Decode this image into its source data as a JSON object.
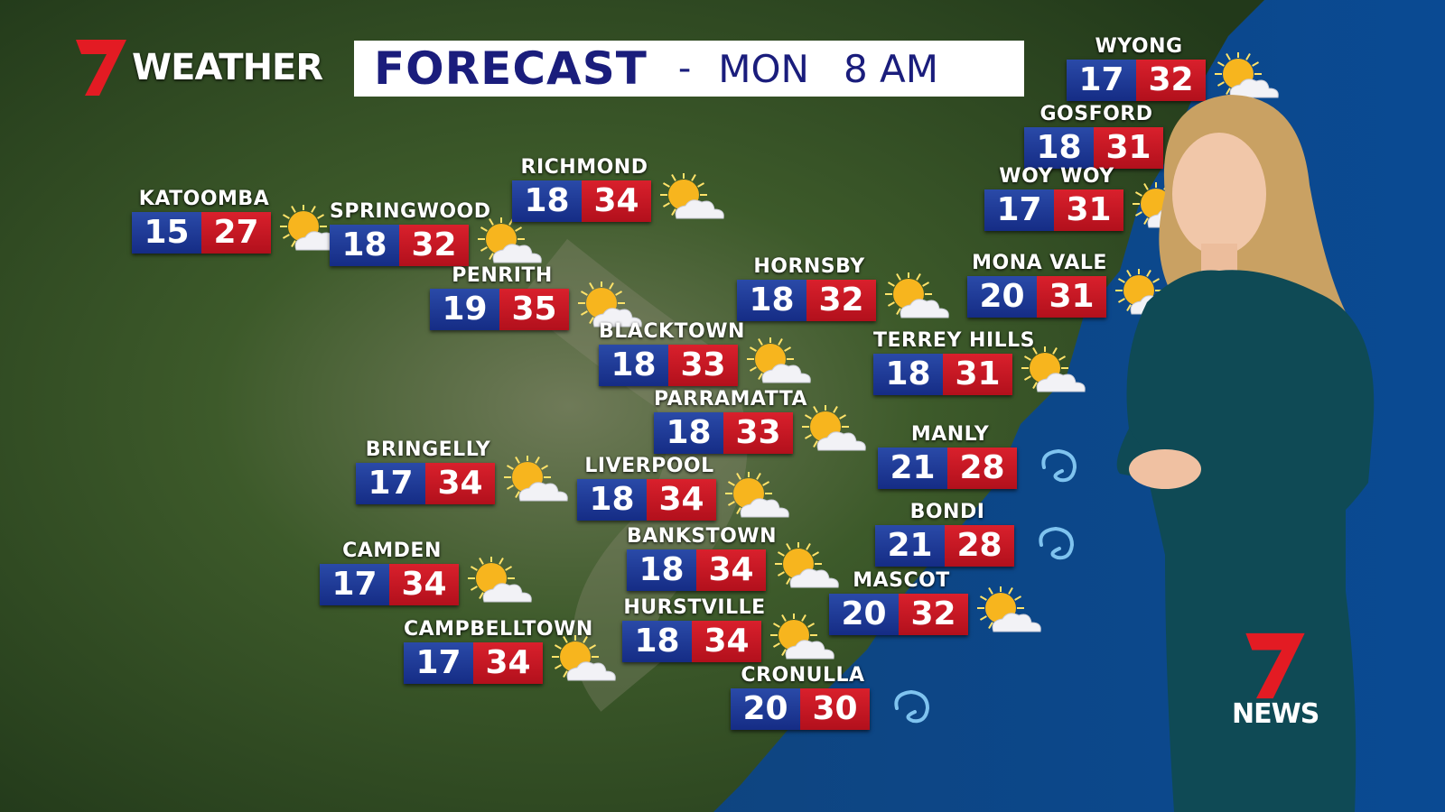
{
  "header": {
    "brand": "WEATHER",
    "title": "FORECAST",
    "separator": "-",
    "day": "MON",
    "time": "8 AM"
  },
  "footer_logo": {
    "text": "NEWS"
  },
  "colors": {
    "low_box": "#1f3a9a",
    "high_box": "#c8172a",
    "title_text": "#1a1d7c",
    "logo_red": "#e31b23",
    "ocean": "#0d3f7a"
  },
  "cities": [
    {
      "name": "WYONG",
      "low": "17",
      "high": "32",
      "icon": "sun-cloud-icon"
    },
    {
      "name": "GOSFORD",
      "low": "18",
      "high": "31",
      "icon": "sun-cloud-icon"
    },
    {
      "name": "WOY WOY",
      "low": "17",
      "high": "31",
      "icon": "sun-cloud-icon"
    },
    {
      "name": "KATOOMBA",
      "low": "15",
      "high": "27",
      "icon": "sun-cloud-icon"
    },
    {
      "name": "SPRINGWOOD",
      "low": "18",
      "high": "32",
      "icon": "sun-cloud-icon"
    },
    {
      "name": "RICHMOND",
      "low": "18",
      "high": "34",
      "icon": "sun-cloud-icon"
    },
    {
      "name": "PENRITH",
      "low": "19",
      "high": "35",
      "icon": "sun-cloud-icon"
    },
    {
      "name": "HORNSBY",
      "low": "18",
      "high": "32",
      "icon": "sun-cloud-icon"
    },
    {
      "name": "MONA VALE",
      "low": "20",
      "high": "31",
      "icon": "sun-cloud-icon"
    },
    {
      "name": "BLACKTOWN",
      "low": "18",
      "high": "33",
      "icon": "sun-cloud-icon"
    },
    {
      "name": "TERREY HILLS",
      "low": "18",
      "high": "31",
      "icon": "sun-cloud-icon"
    },
    {
      "name": "PARRAMATTA",
      "low": "18",
      "high": "33",
      "icon": "sun-cloud-icon"
    },
    {
      "name": "MANLY",
      "low": "21",
      "high": "28",
      "icon": "wind-icon"
    },
    {
      "name": "BRINGELLY",
      "low": "17",
      "high": "34",
      "icon": "sun-cloud-icon"
    },
    {
      "name": "LIVERPOOL",
      "low": "18",
      "high": "34",
      "icon": "sun-cloud-icon"
    },
    {
      "name": "BONDI",
      "low": "21",
      "high": "28",
      "icon": "wind-icon"
    },
    {
      "name": "CAMDEN",
      "low": "17",
      "high": "34",
      "icon": "sun-cloud-icon"
    },
    {
      "name": "BANKSTOWN",
      "low": "18",
      "high": "34",
      "icon": "sun-cloud-icon"
    },
    {
      "name": "MASCOT",
      "low": "20",
      "high": "32",
      "icon": "sun-cloud-icon"
    },
    {
      "name": "HURSTVILLE",
      "low": "18",
      "high": "34",
      "icon": "sun-cloud-icon"
    },
    {
      "name": "CAMPBELLTOWN",
      "low": "17",
      "high": "34",
      "icon": "sun-cloud-icon"
    },
    {
      "name": "CRONULLA",
      "low": "20",
      "high": "30",
      "icon": "wind-icon"
    }
  ]
}
